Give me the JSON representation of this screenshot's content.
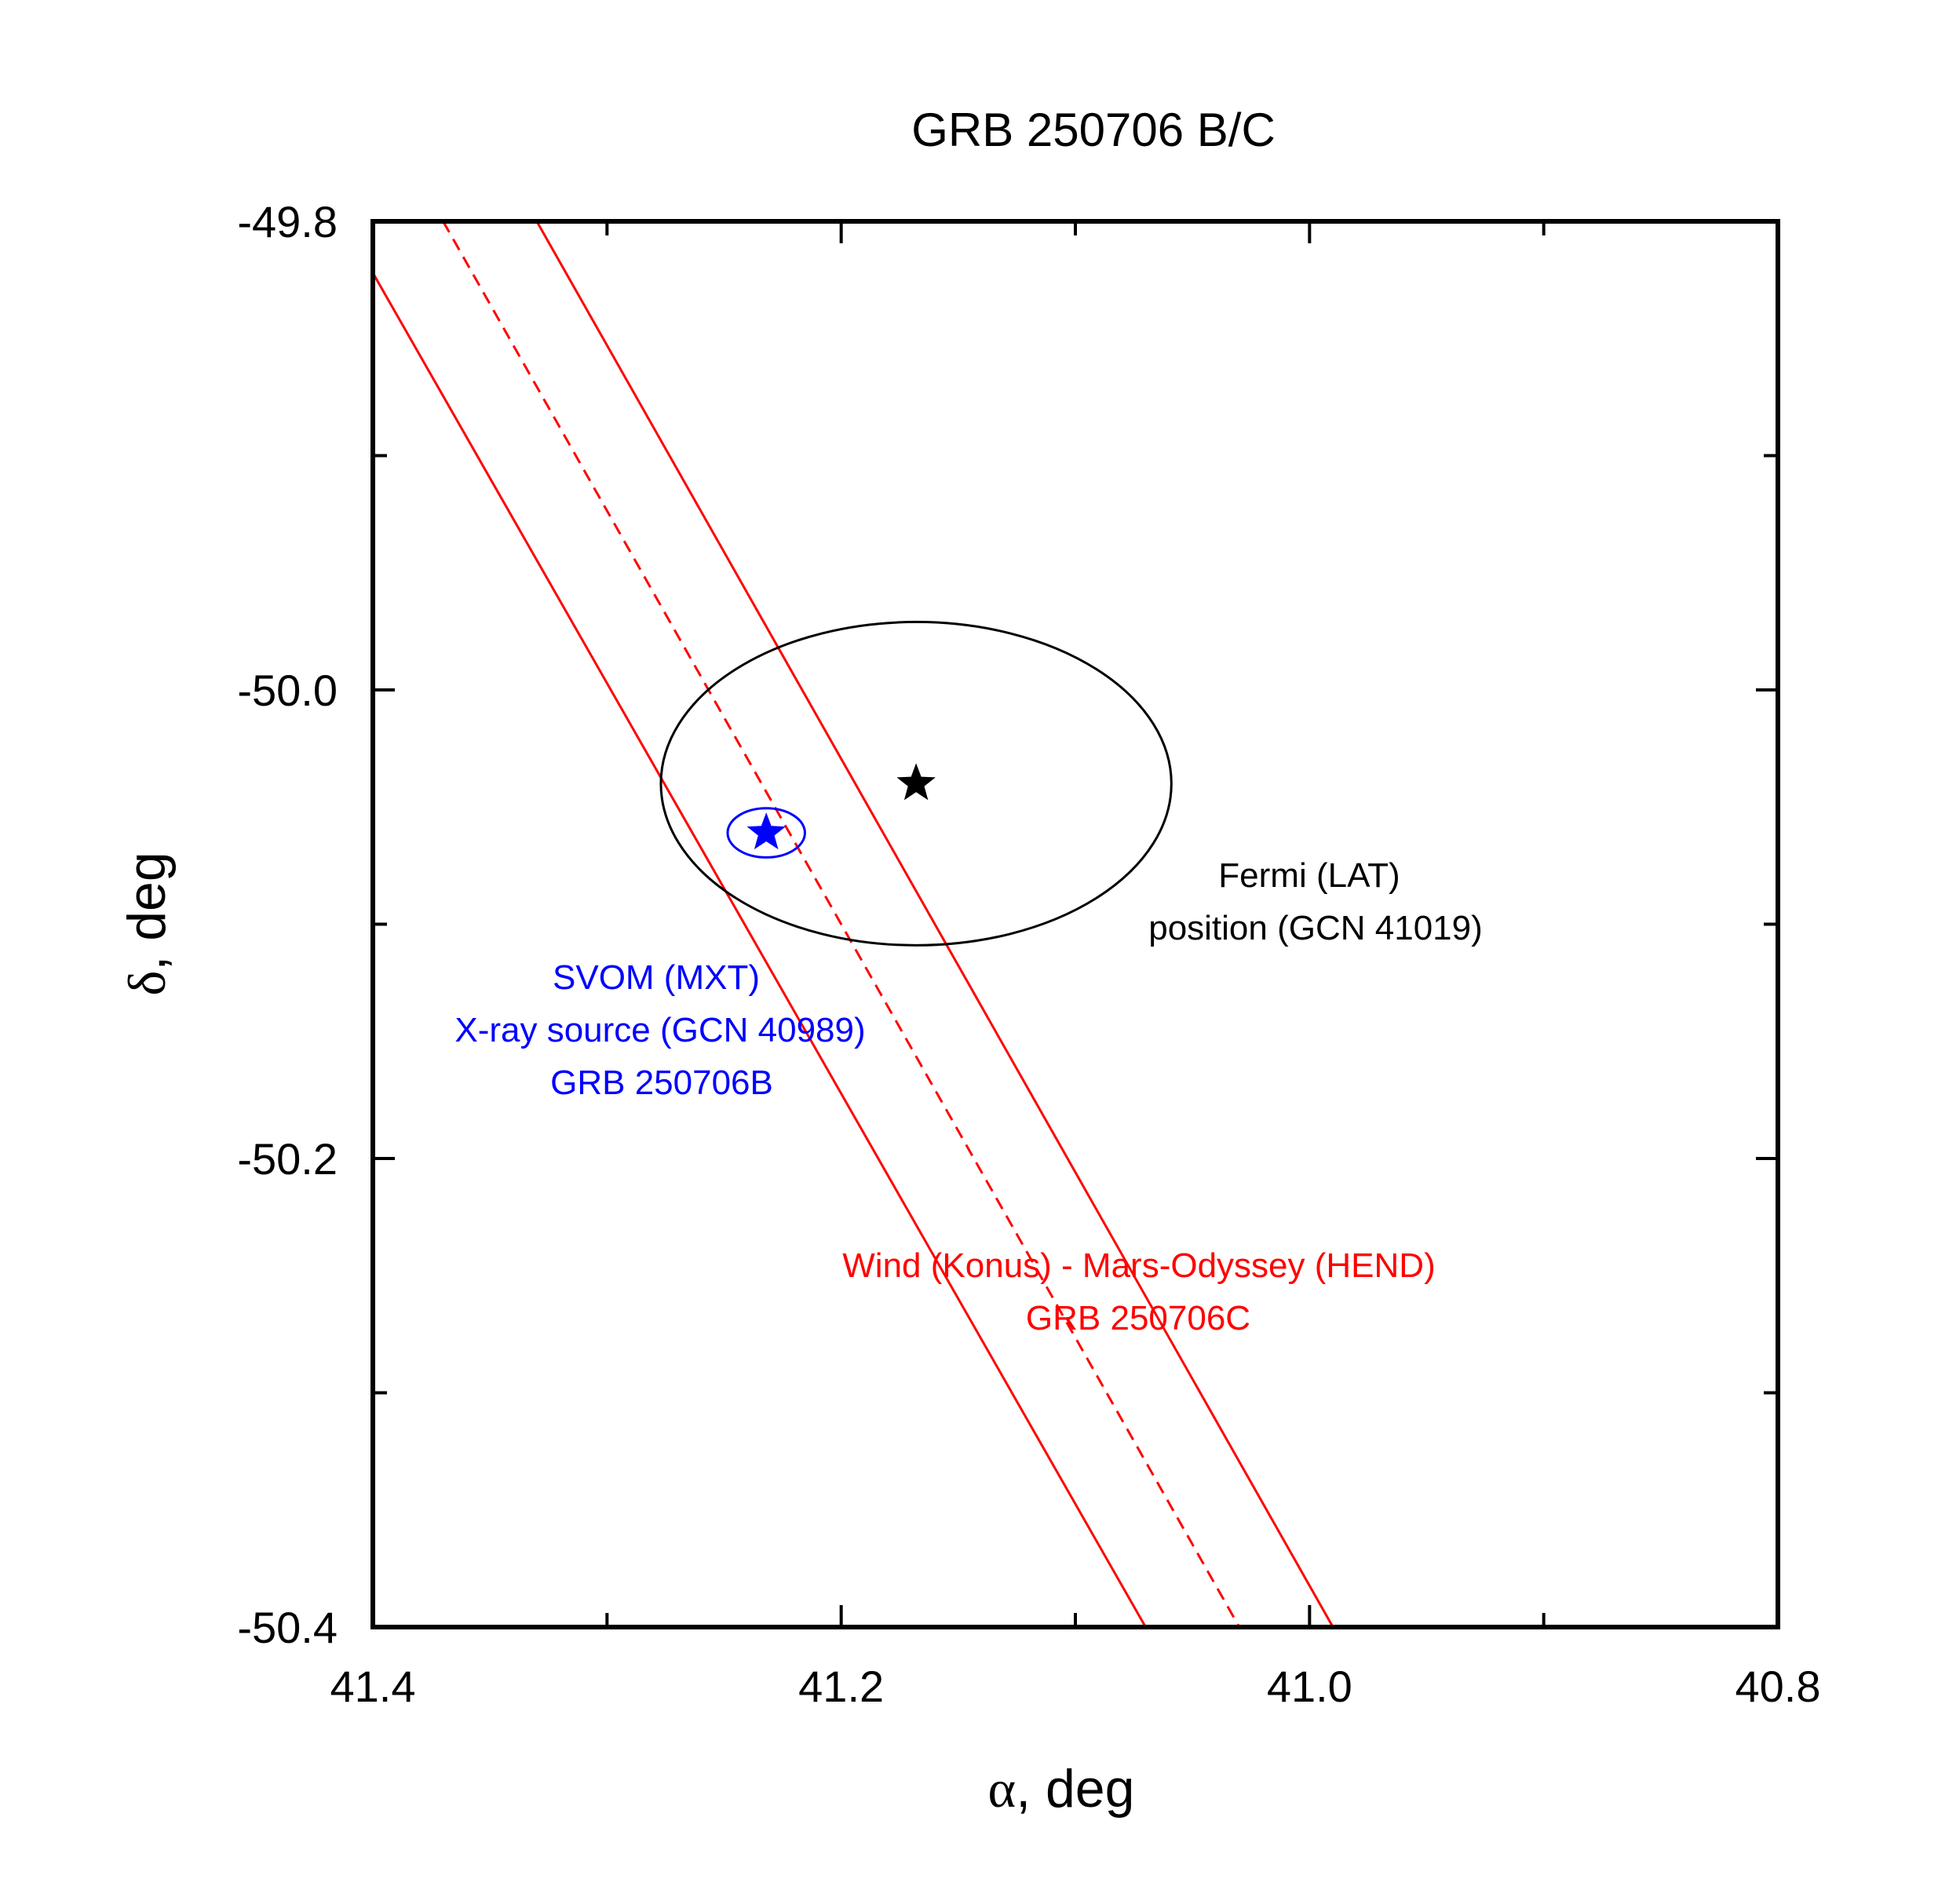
{
  "chart_data": {
    "type": "scatter",
    "title": "GRB 250706 B/C",
    "xlabel": {
      "symbol": "α",
      "text": ", deg"
    },
    "ylabel": {
      "symbol": "δ",
      "text": ", deg"
    },
    "xlim": [
      41.4,
      40.8
    ],
    "ylim": [
      -50.4,
      -49.8
    ],
    "x_reversed": true,
    "x_ticks": [
      {
        "value": 41.4,
        "label": "41.4"
      },
      {
        "value": 41.2,
        "label": "41.2"
      },
      {
        "value": 41.0,
        "label": "41.0"
      },
      {
        "value": 40.8,
        "label": "40.8"
      }
    ],
    "y_ticks": [
      {
        "value": -49.8,
        "label": "-49.8"
      },
      {
        "value": -50.0,
        "label": "-50.0"
      },
      {
        "value": -50.2,
        "label": "-50.2"
      },
      {
        "value": -50.4,
        "label": "-50.4"
      }
    ],
    "x_minor_ticks": [
      41.3,
      41.1,
      40.9
    ],
    "y_minor_ticks": [
      -49.9,
      -50.1,
      -50.3
    ],
    "grid": false,
    "series": [
      {
        "name": "Wind (Konus) - Mars-Odyssey (HEND) annulus",
        "color": "#ff0000",
        "lines": [
          {
            "style": "solid",
            "x": [
              41.4,
              41.07
            ],
            "y": [
              -49.822,
              -50.4
            ]
          },
          {
            "style": "dashed",
            "x": [
              41.37,
              41.03
            ],
            "y": [
              -49.8,
              -50.4
            ]
          },
          {
            "style": "solid",
            "x": [
              41.33,
              40.99
            ],
            "y": [
              -49.8,
              -50.4
            ]
          }
        ]
      },
      {
        "name": "Fermi (LAT) position",
        "color": "#000000",
        "marker": {
          "x": 41.168,
          "y": -50.04
        },
        "ellipse": {
          "cx": 41.168,
          "cy": -50.04,
          "rx": 0.109,
          "ry": 0.069
        }
      },
      {
        "name": "SVOM (MXT) X-ray source",
        "color": "#0000ff",
        "marker": {
          "x": 41.232,
          "y": -50.061
        },
        "ellipse": {
          "cx": 41.232,
          "cy": -50.061,
          "rx": 0.0165,
          "ry": 0.0105
        }
      }
    ],
    "annotations": [
      {
        "id": "fermi",
        "color": "#000000",
        "lines": [
          "Fermi (LAT)",
          "position (GCN 41019)"
        ]
      },
      {
        "id": "svom",
        "color": "#0000ff",
        "lines": [
          "SVOM (MXT)",
          "X-ray source (GCN 40989)",
          "GRB 250706B"
        ]
      },
      {
        "id": "konus",
        "color": "#ff0000",
        "lines": [
          "Wind (Konus) - Mars-Odyssey (HEND)",
          "GRB 250706C"
        ]
      }
    ]
  }
}
